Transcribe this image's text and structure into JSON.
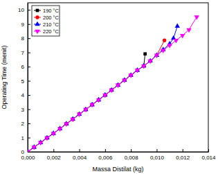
{
  "chart_data": {
    "type": "line",
    "x_label": "Massa Distilat (kg)",
    "y_label": "Operating Time (menit)",
    "xlim": [
      0,
      0.014
    ],
    "xticks": [
      {
        "value": 0,
        "label": "0,000"
      },
      {
        "value": 0.002,
        "label": "0,002"
      },
      {
        "value": 0.004,
        "label": "0,004"
      },
      {
        "value": 0.006,
        "label": "0,006"
      },
      {
        "value": 0.008,
        "label": "0,008"
      },
      {
        "value": 0.01,
        "label": "0,010"
      },
      {
        "value": 0.012,
        "label": "0,012"
      },
      {
        "value": 0.014,
        "label": "0,014"
      }
    ],
    "ylim": [
      0,
      10.5
    ],
    "yticks": [
      0,
      1,
      2,
      3,
      4,
      5,
      6,
      7,
      8,
      9,
      10
    ],
    "grid": false,
    "legend": "top-left",
    "series": [
      {
        "name": "190 °C",
        "color": "#000000",
        "marker": "square",
        "x": [
          0,
          0.0005,
          0.001,
          0.0015,
          0.002,
          0.0025,
          0.003,
          0.0035,
          0.004,
          0.0045,
          0.005,
          0.0055,
          0.006,
          0.0065,
          0.007,
          0.0075,
          0.008,
          0.0085,
          0.009,
          0.0091
        ],
        "values": [
          0,
          0.33,
          0.65,
          0.98,
          1.3,
          1.63,
          1.97,
          2.3,
          2.65,
          2.98,
          3.32,
          3.66,
          4.0,
          4.35,
          4.7,
          5.05,
          5.4,
          5.75,
          6.05,
          6.9
        ]
      },
      {
        "name": "200 °C",
        "color": "#ff0000",
        "marker": "circle",
        "x": [
          0,
          0.0005,
          0.001,
          0.0015,
          0.002,
          0.0025,
          0.003,
          0.0035,
          0.004,
          0.0045,
          0.005,
          0.0055,
          0.006,
          0.0065,
          0.007,
          0.0075,
          0.008,
          0.0085,
          0.009,
          0.0095,
          0.01,
          0.0106
        ],
        "values": [
          0,
          0.33,
          0.65,
          0.98,
          1.3,
          1.63,
          1.97,
          2.3,
          2.65,
          2.98,
          3.32,
          3.66,
          4.0,
          4.35,
          4.7,
          5.05,
          5.4,
          5.75,
          6.05,
          6.4,
          6.8,
          7.85
        ]
      },
      {
        "name": "210 °C",
        "color": "#0000ff",
        "marker": "triangle",
        "x": [
          0,
          0.0005,
          0.001,
          0.0015,
          0.002,
          0.0025,
          0.003,
          0.0035,
          0.004,
          0.0045,
          0.005,
          0.0055,
          0.006,
          0.0065,
          0.007,
          0.0075,
          0.008,
          0.0085,
          0.009,
          0.0095,
          0.01,
          0.0105,
          0.011,
          0.0113,
          0.0116
        ],
        "values": [
          0,
          0.33,
          0.65,
          0.98,
          1.3,
          1.63,
          1.97,
          2.3,
          2.65,
          2.98,
          3.32,
          3.66,
          4.0,
          4.35,
          4.7,
          5.05,
          5.4,
          5.75,
          6.05,
          6.4,
          6.8,
          7.2,
          7.6,
          8.0,
          8.85
        ]
      },
      {
        "name": "220 °C",
        "color": "#ff00ff",
        "marker": "triangle-down",
        "x": [
          0,
          0.0005,
          0.001,
          0.0015,
          0.002,
          0.0025,
          0.003,
          0.0035,
          0.004,
          0.0045,
          0.005,
          0.0055,
          0.006,
          0.0065,
          0.007,
          0.0075,
          0.008,
          0.0085,
          0.009,
          0.0095,
          0.01,
          0.0105,
          0.011,
          0.0115,
          0.012,
          0.0125,
          0.0131
        ],
        "values": [
          0,
          0.33,
          0.65,
          0.98,
          1.3,
          1.63,
          1.97,
          2.3,
          2.65,
          2.98,
          3.32,
          3.66,
          4.0,
          4.35,
          4.7,
          5.05,
          5.4,
          5.75,
          6.05,
          6.4,
          6.8,
          7.15,
          7.5,
          7.85,
          8.2,
          8.6,
          9.5
        ]
      }
    ]
  }
}
